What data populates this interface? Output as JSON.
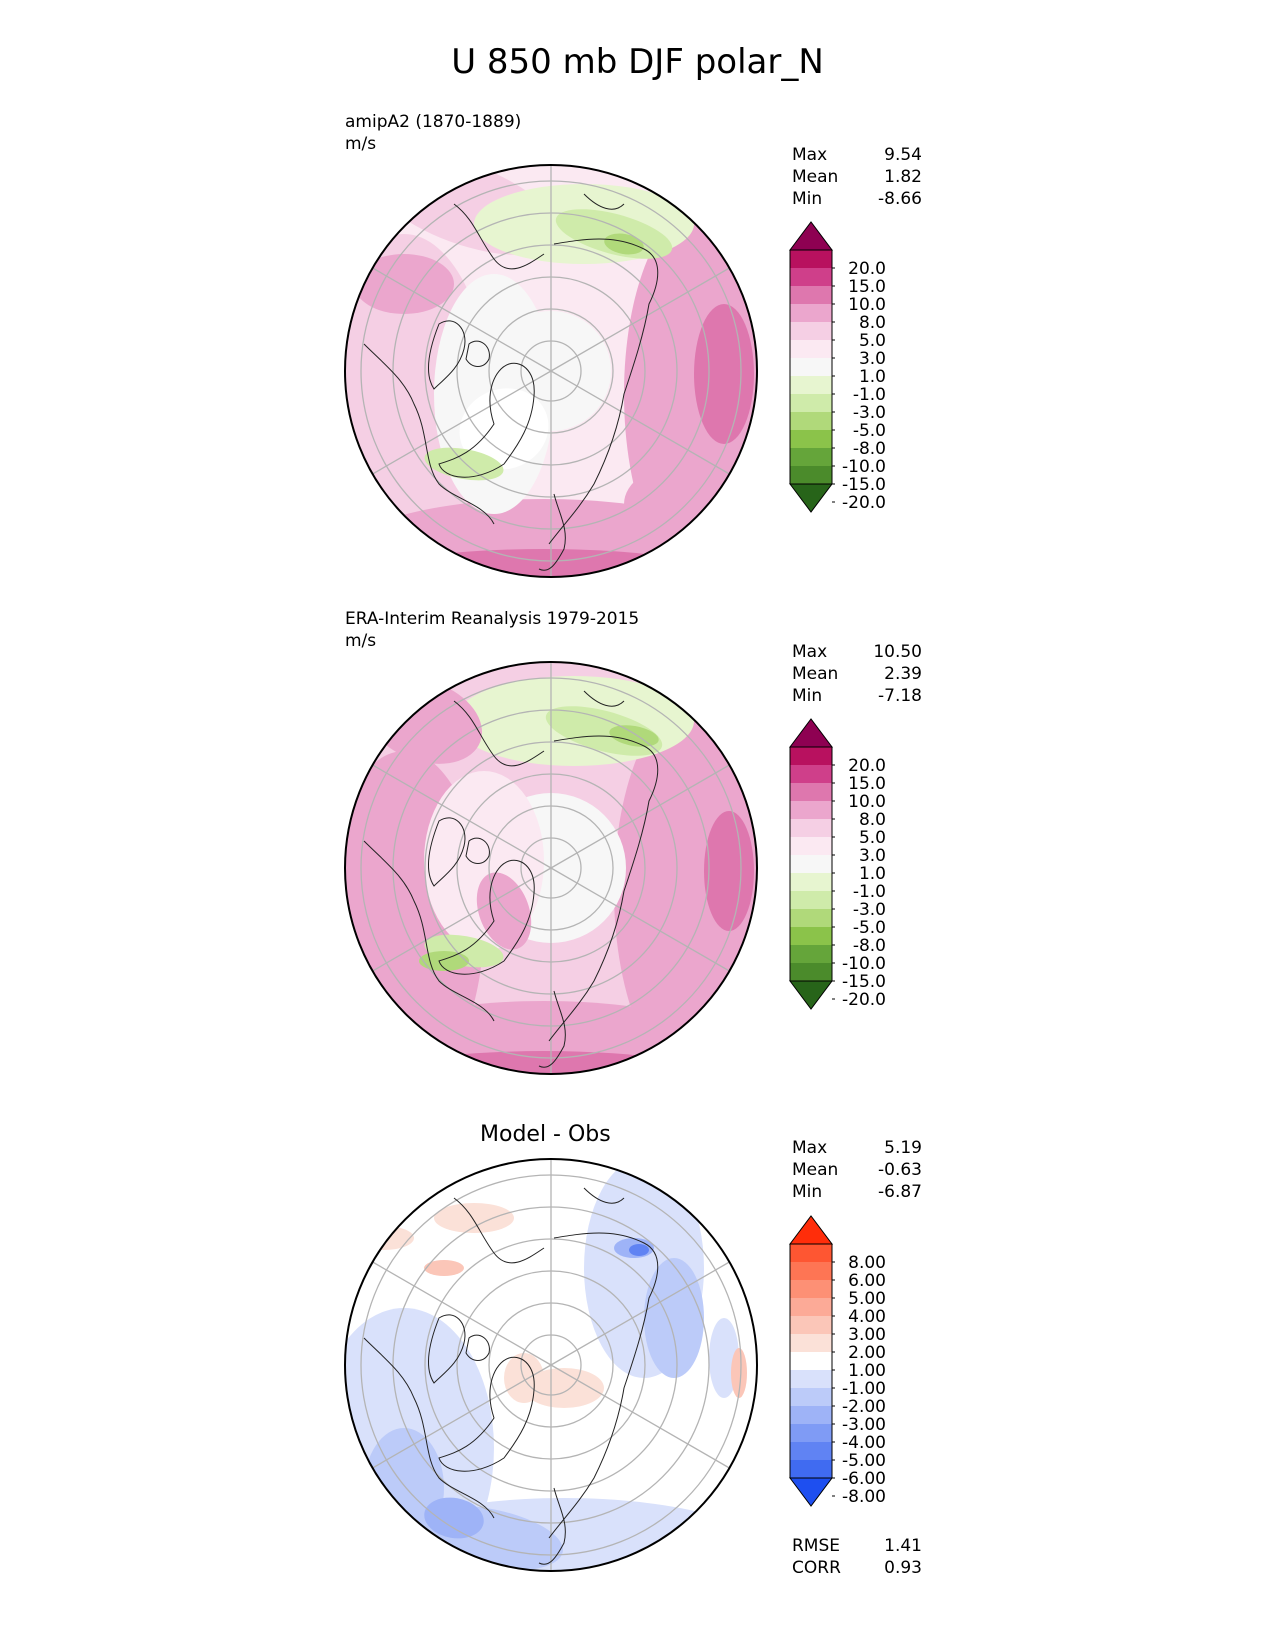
{
  "title": "U 850 mb DJF polar_N",
  "chart_data": [
    {
      "type": "heatmap",
      "projection": "north-polar-stereographic",
      "label": "amipA2 (1870-1889)",
      "units": "m/s",
      "stats": {
        "max": "9.54",
        "mean": "1.82",
        "min": "-8.66"
      },
      "colorbar": {
        "levels": [
          "20.0",
          "15.0",
          "10.0",
          "8.0",
          "5.0",
          "3.0",
          "1.0",
          "-1.0",
          "-3.0",
          "-5.0",
          "-8.0",
          "-10.0",
          "-15.0",
          "-20.0"
        ],
        "colors": [
          "#8e0152",
          "#b8115f",
          "#cf3f8a",
          "#de77ae",
          "#eba6cd",
          "#f5cfe4",
          "#fbe9f2",
          "#f7f7f7",
          "#e7f5d0",
          "#cfebaa",
          "#b0d97a",
          "#8bc34a",
          "#65a53a",
          "#4b8b2b",
          "#276419"
        ],
        "extend": "both"
      }
    },
    {
      "type": "heatmap",
      "projection": "north-polar-stereographic",
      "label": "ERA-Interim Reanalysis 1979-2015",
      "units": "m/s",
      "stats": {
        "max": "10.50",
        "mean": "2.39",
        "min": "-7.18"
      },
      "colorbar": {
        "levels": [
          "20.0",
          "15.0",
          "10.0",
          "8.0",
          "5.0",
          "3.0",
          "1.0",
          "-1.0",
          "-3.0",
          "-5.0",
          "-8.0",
          "-10.0",
          "-15.0",
          "-20.0"
        ],
        "colors": [
          "#8e0152",
          "#b8115f",
          "#cf3f8a",
          "#de77ae",
          "#eba6cd",
          "#f5cfe4",
          "#fbe9f2",
          "#f7f7f7",
          "#e7f5d0",
          "#cfebaa",
          "#b0d97a",
          "#8bc34a",
          "#65a53a",
          "#4b8b2b",
          "#276419"
        ],
        "extend": "both"
      }
    },
    {
      "type": "heatmap",
      "projection": "north-polar-stereographic",
      "title": "Model - Obs",
      "stats": {
        "max": "5.19",
        "mean": "-0.63",
        "min": "-6.87",
        "rmse": "1.41",
        "corr": "0.93"
      },
      "colorbar": {
        "levels": [
          "8.00",
          "6.00",
          "5.00",
          "4.00",
          "3.00",
          "2.00",
          "1.00",
          "-1.00",
          "-2.00",
          "-3.00",
          "-4.00",
          "-5.00",
          "-6.00",
          "-8.00"
        ],
        "colors": [
          "#ff2d0a",
          "#fe5632",
          "#fe7554",
          "#fd9075",
          "#fcaa97",
          "#fbc6b8",
          "#fbe1d8",
          "#ffffff",
          "#d9e1fb",
          "#bccbf9",
          "#9eb3f7",
          "#7f9bf5",
          "#6083f3",
          "#406bf1",
          "#1e4ff0"
        ],
        "extend": "both"
      }
    }
  ],
  "stat_labels": {
    "max": "Max",
    "mean": "Mean",
    "min": "Min",
    "rmse": "RMSE",
    "corr": "CORR"
  }
}
